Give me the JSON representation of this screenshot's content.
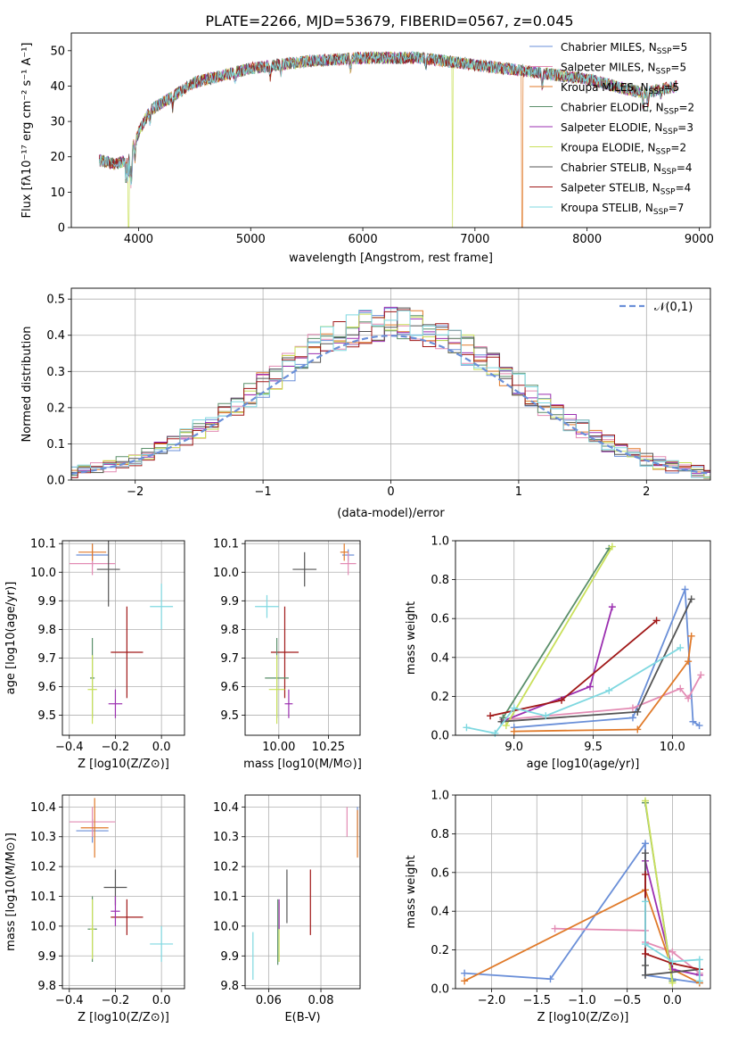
{
  "figure_title": "PLATE=2266, MJD=53679, FIBERID=0567, z=0.045",
  "colors": {
    "chabrier_miles": "#6a8fd8",
    "salpeter_miles": "#e38cb4",
    "kroupa_miles": "#e07a2a",
    "chabrier_elodie": "#5a8f6a",
    "salpeter_elodie": "#9b2fb0",
    "kroupa_elodie": "#c9e05a",
    "chabrier_stelib": "#555555",
    "salpeter_stelib": "#a01818",
    "kroupa_stelib": "#7fd8e0",
    "normal_curve": "#6a8fd8"
  },
  "chart_data": [
    {
      "id": "spectrum",
      "type": "line",
      "title": "PLATE=2266, MJD=53679, FIBERID=0567, z=0.045",
      "xlabel": "wavelength [Angstrom, rest frame]",
      "ylabel": "Flux [fλ10⁻¹⁷ erg cm⁻² s⁻¹ A⁻¹]",
      "xlim": [
        3400,
        9100
      ],
      "ylim": [
        0,
        55
      ],
      "xticks": [
        4000,
        5000,
        6000,
        7000,
        8000,
        9000
      ],
      "yticks": [
        0,
        10,
        20,
        30,
        40,
        50
      ],
      "legend_position": "top-right",
      "series": [
        {
          "key": "chabrier_miles",
          "name": "Chabrier MILES, N_SSP=5"
        },
        {
          "key": "salpeter_miles",
          "name": "Salpeter MILES, N_SSP=5"
        },
        {
          "key": "kroupa_miles",
          "name": "Kroupa MILES, N_SSP=5"
        },
        {
          "key": "chabrier_elodie",
          "name": "Chabrier ELODIE, N_SSP=2"
        },
        {
          "key": "salpeter_elodie",
          "name": "Salpeter ELODIE, N_SSP=3"
        },
        {
          "key": "kroupa_elodie",
          "name": "Kroupa ELODIE, N_SSP=2"
        },
        {
          "key": "chabrier_stelib",
          "name": "Chabrier STELIB, N_SSP=4"
        },
        {
          "key": "salpeter_stelib",
          "name": "Salpeter STELIB, N_SSP=4"
        },
        {
          "key": "kroupa_stelib",
          "name": "Kroupa STELIB, N_SSP=7"
        }
      ],
      "continuum": {
        "x": [
          3650,
          3800,
          3900,
          4000,
          4100,
          4300,
          4500,
          5000,
          5500,
          6000,
          6500,
          7000,
          7500,
          8000,
          8500,
          8800
        ],
        "y": [
          19,
          18,
          19,
          27,
          33,
          37,
          41,
          45,
          47,
          48,
          48,
          46,
          44,
          42,
          38,
          40
        ]
      },
      "dropouts": [
        {
          "series": "kroupa_elodie",
          "x": 3910
        },
        {
          "series": "kroupa_elodie",
          "x": 6800
        },
        {
          "series": "kroupa_miles",
          "x": 7420
        }
      ]
    },
    {
      "id": "residual_hist",
      "type": "histogram",
      "xlabel": "(data-model)/error",
      "ylabel": "Normed distribution",
      "xlim": [
        -2.5,
        2.5
      ],
      "ylim": [
        0,
        0.53
      ],
      "xticks": [
        -2,
        -1,
        0,
        1,
        2
      ],
      "yticks": [
        0.0,
        0.1,
        0.2,
        0.3,
        0.4,
        0.5
      ],
      "grid": true,
      "legend_position": "top-right",
      "normal_label": "𝒩(0,1)",
      "normal_mean": 0,
      "normal_sigma": 1,
      "bin_width": 0.1
    },
    {
      "id": "age_vs_Z",
      "type": "errorbar",
      "xlabel": "Z [log10(Z/Z⊙)]",
      "ylabel": "age  [log10(age/yr)]",
      "xlim": [
        -0.43,
        0.1
      ],
      "ylim": [
        9.43,
        10.11
      ],
      "xticks": [
        -0.4,
        -0.2,
        0.0
      ],
      "yticks": [
        9.5,
        9.6,
        9.7,
        9.8,
        9.9,
        10.0,
        10.1
      ],
      "points": [
        {
          "series": "chabrier_miles",
          "x": -0.3,
          "y": 10.06,
          "xerr": 0.07,
          "yerr": 0.04
        },
        {
          "series": "salpeter_miles",
          "x": -0.3,
          "y": 10.03,
          "xerr": 0.1,
          "yerr": 0.04
        },
        {
          "series": "kroupa_miles",
          "x": -0.3,
          "y": 10.07,
          "xerr": 0.06,
          "yerr": 0.03
        },
        {
          "series": "chabrier_stelib",
          "x": -0.23,
          "y": 10.01,
          "xerr": 0.05,
          "yerr": 0.13
        },
        {
          "series": "kroupa_stelib",
          "x": 0.0,
          "y": 9.88,
          "xerr": 0.05,
          "yerr": 0.08
        },
        {
          "series": "salpeter_stelib",
          "x": -0.15,
          "y": 9.72,
          "xerr": 0.07,
          "yerr": 0.16
        },
        {
          "series": "chabrier_elodie",
          "x": -0.3,
          "y": 9.63,
          "xerr": 0.01,
          "yerr": 0.14
        },
        {
          "series": "kroupa_elodie",
          "x": -0.3,
          "y": 9.59,
          "xerr": 0.02,
          "yerr": 0.12
        },
        {
          "series": "salpeter_elodie",
          "x": -0.2,
          "y": 9.54,
          "xerr": 0.03,
          "yerr": 0.05
        }
      ]
    },
    {
      "id": "age_vs_mass",
      "type": "errorbar",
      "xlabel": "mass [log10(M/M⊙)]",
      "ylabel": "",
      "xlim": [
        9.83,
        10.41
      ],
      "ylim": [
        9.43,
        10.11
      ],
      "xticks": [
        10.0,
        10.25
      ],
      "yticks": [
        9.5,
        9.6,
        9.7,
        9.8,
        9.9,
        10.0,
        10.1
      ],
      "points": [
        {
          "series": "chabrier_miles",
          "x": 10.35,
          "y": 10.06,
          "xerr": 0.03,
          "yerr": 0.02
        },
        {
          "series": "salpeter_miles",
          "x": 10.35,
          "y": 10.03,
          "xerr": 0.04,
          "yerr": 0.04
        },
        {
          "series": "kroupa_miles",
          "x": 10.33,
          "y": 10.07,
          "xerr": 0.02,
          "yerr": 0.03
        },
        {
          "series": "chabrier_stelib",
          "x": 10.13,
          "y": 10.01,
          "xerr": 0.06,
          "yerr": 0.06
        },
        {
          "series": "kroupa_stelib",
          "x": 9.94,
          "y": 9.88,
          "xerr": 0.06,
          "yerr": 0.04
        },
        {
          "series": "salpeter_stelib",
          "x": 10.03,
          "y": 9.72,
          "xerr": 0.07,
          "yerr": 0.16
        },
        {
          "series": "chabrier_elodie",
          "x": 9.99,
          "y": 9.63,
          "xerr": 0.06,
          "yerr": 0.14
        },
        {
          "series": "kroupa_elodie",
          "x": 9.99,
          "y": 9.59,
          "xerr": 0.04,
          "yerr": 0.12
        },
        {
          "series": "salpeter_elodie",
          "x": 10.05,
          "y": 9.54,
          "xerr": 0.02,
          "yerr": 0.05
        }
      ]
    },
    {
      "id": "mass_weight_vs_age",
      "type": "line",
      "xlabel": "age  [log10(age/yr)]",
      "ylabel": "mass weight",
      "xlim": [
        8.63,
        10.24
      ],
      "ylim": [
        0,
        1.0
      ],
      "xticks": [
        9.0,
        9.5,
        10.0
      ],
      "yticks": [
        0.0,
        0.2,
        0.4,
        0.6,
        0.8,
        1.0
      ],
      "grid": true,
      "series": [
        {
          "key": "chabrier_miles",
          "x": [
            9.0,
            9.75,
            10.08,
            10.13,
            10.17
          ],
          "y": [
            0.04,
            0.09,
            0.75,
            0.07,
            0.05
          ]
        },
        {
          "key": "salpeter_miles",
          "x": [
            8.93,
            9.75,
            10.05,
            10.1,
            10.18
          ],
          "y": [
            0.08,
            0.14,
            0.24,
            0.19,
            0.31
          ]
        },
        {
          "key": "kroupa_miles",
          "x": [
            9.0,
            9.78,
            10.1,
            10.12
          ],
          "y": [
            0.02,
            0.03,
            0.38,
            0.51
          ]
        },
        {
          "key": "chabrier_elodie",
          "x": [
            8.93,
            9.6
          ],
          "y": [
            0.09,
            0.96
          ]
        },
        {
          "key": "salpeter_elodie",
          "x": [
            8.92,
            9.48,
            9.62
          ],
          "y": [
            0.07,
            0.25,
            0.66
          ]
        },
        {
          "key": "kroupa_elodie",
          "x": [
            8.95,
            9.62
          ],
          "y": [
            0.05,
            0.97
          ]
        },
        {
          "key": "chabrier_stelib",
          "x": [
            8.92,
            9.78,
            10.12
          ],
          "y": [
            0.07,
            0.12,
            0.7
          ]
        },
        {
          "key": "salpeter_stelib",
          "x": [
            8.85,
            9.3,
            9.9
          ],
          "y": [
            0.1,
            0.18,
            0.59
          ]
        },
        {
          "key": "kroupa_stelib",
          "x": [
            8.7,
            8.88,
            9.0,
            9.2,
            9.6,
            10.05
          ],
          "y": [
            0.04,
            0.01,
            0.14,
            0.1,
            0.23,
            0.45
          ]
        }
      ]
    },
    {
      "id": "mass_vs_Z",
      "type": "errorbar",
      "xlabel": "Z [log10(Z/Z⊙)]",
      "ylabel": "mass [log10(M/M⊙)]",
      "xlim": [
        -0.43,
        0.1
      ],
      "ylim": [
        9.79,
        10.44
      ],
      "xticks": [
        -0.4,
        -0.2,
        0.0
      ],
      "yticks": [
        9.8,
        9.9,
        10.0,
        10.1,
        10.2,
        10.3,
        10.4
      ],
      "points": [
        {
          "series": "chabrier_miles",
          "x": -0.3,
          "y": 10.32,
          "xerr": 0.07,
          "yerr": 0.04
        },
        {
          "series": "salpeter_miles",
          "x": -0.3,
          "y": 10.35,
          "xerr": 0.1,
          "yerr": 0.05
        },
        {
          "series": "kroupa_miles",
          "x": -0.29,
          "y": 10.33,
          "xerr": 0.06,
          "yerr": 0.1
        },
        {
          "series": "chabrier_stelib",
          "x": -0.2,
          "y": 10.13,
          "xerr": 0.05,
          "yerr": 0.06
        },
        {
          "series": "kroupa_stelib",
          "x": 0.0,
          "y": 9.94,
          "xerr": 0.05,
          "yerr": 0.06
        },
        {
          "series": "salpeter_stelib",
          "x": -0.15,
          "y": 10.03,
          "xerr": 0.07,
          "yerr": 0.06
        },
        {
          "series": "chabrier_elodie",
          "x": -0.3,
          "y": 9.99,
          "xerr": 0.02,
          "yerr": 0.11
        },
        {
          "series": "kroupa_elodie",
          "x": -0.3,
          "y": 9.99,
          "xerr": 0.01,
          "yerr": 0.1
        },
        {
          "series": "salpeter_elodie",
          "x": -0.2,
          "y": 10.05,
          "xerr": 0.02,
          "yerr": 0.05
        }
      ]
    },
    {
      "id": "mass_vs_ebv",
      "type": "errorbar",
      "xlabel": "E(B-V)",
      "ylabel": "",
      "xlim": [
        0.051,
        0.095
      ],
      "ylim": [
        9.79,
        10.44
      ],
      "xticks": [
        0.06,
        0.08
      ],
      "yticks": [
        9.8,
        9.9,
        10.0,
        10.1,
        10.2,
        10.3,
        10.4
      ],
      "points": [
        {
          "series": "chabrier_miles",
          "x": 0.094,
          "y": 10.35,
          "xerr": 0.0,
          "yerr": 0.05
        },
        {
          "series": "salpeter_miles",
          "x": 0.09,
          "y": 10.35,
          "xerr": 0.0,
          "yerr": 0.05
        },
        {
          "series": "kroupa_miles",
          "x": 0.094,
          "y": 10.31,
          "xerr": 0.0,
          "yerr": 0.08
        },
        {
          "series": "chabrier_stelib",
          "x": 0.067,
          "y": 10.1,
          "xerr": 0.0,
          "yerr": 0.09
        },
        {
          "series": "kroupa_stelib",
          "x": 0.054,
          "y": 9.9,
          "xerr": 0.0,
          "yerr": 0.08
        },
        {
          "series": "salpeter_stelib",
          "x": 0.076,
          "y": 10.08,
          "xerr": 0.0,
          "yerr": 0.11
        },
        {
          "series": "chabrier_elodie",
          "x": 0.0635,
          "y": 9.98,
          "xerr": 0.0,
          "yerr": 0.11
        },
        {
          "series": "kroupa_elodie",
          "x": 0.064,
          "y": 9.98,
          "xerr": 0.0,
          "yerr": 0.1
        },
        {
          "series": "salpeter_elodie",
          "x": 0.064,
          "y": 10.04,
          "xerr": 0.0,
          "yerr": 0.05
        }
      ]
    },
    {
      "id": "mass_weight_vs_Z",
      "type": "line",
      "xlabel": "Z [log10(Z/Z⊙)]",
      "ylabel": "mass weight",
      "xlim": [
        -2.4,
        0.42
      ],
      "ylim": [
        0,
        1.0
      ],
      "xticks": [
        -2.0,
        -1.5,
        -1.0,
        -0.5,
        0.0
      ],
      "yticks": [
        0.0,
        0.2,
        0.4,
        0.6,
        0.8,
        1.0
      ],
      "grid": true,
      "series": [
        {
          "key": "chabrier_miles",
          "x": [
            -2.3,
            -1.35,
            -0.3,
            -0.3,
            0.0,
            0.3
          ],
          "y": [
            0.08,
            0.05,
            0.75,
            0.07,
            0.05,
            0.03
          ]
        },
        {
          "key": "salpeter_miles",
          "x": [
            -1.3,
            -0.3,
            -0.3,
            0.0,
            0.3
          ],
          "y": [
            0.31,
            0.3,
            0.24,
            0.19,
            0.08
          ]
        },
        {
          "key": "kroupa_miles",
          "x": [
            -2.3,
            -0.3,
            0.0,
            0.3
          ],
          "y": [
            0.04,
            0.51,
            0.1,
            0.03
          ]
        },
        {
          "key": "chabrier_elodie",
          "x": [
            -0.3,
            0.0
          ],
          "y": [
            0.96,
            0.04
          ]
        },
        {
          "key": "salpeter_elodie",
          "x": [
            -0.3,
            0.0,
            0.3
          ],
          "y": [
            0.66,
            0.1,
            0.07
          ]
        },
        {
          "key": "kroupa_elodie",
          "x": [
            -0.3,
            0.0
          ],
          "y": [
            0.97,
            0.03
          ]
        },
        {
          "key": "chabrier_stelib",
          "x": [
            -0.3,
            -0.3,
            -0.3,
            0.3
          ],
          "y": [
            0.7,
            0.12,
            0.07,
            0.1
          ]
        },
        {
          "key": "salpeter_stelib",
          "x": [
            -0.3,
            -0.3,
            0.0,
            0.3
          ],
          "y": [
            0.59,
            0.18,
            0.13,
            0.1
          ]
        },
        {
          "key": "kroupa_stelib",
          "x": [
            -0.3,
            -0.3,
            0.0,
            0.3,
            0.3
          ],
          "y": [
            0.45,
            0.23,
            0.14,
            0.15,
            0.04
          ]
        }
      ]
    }
  ]
}
